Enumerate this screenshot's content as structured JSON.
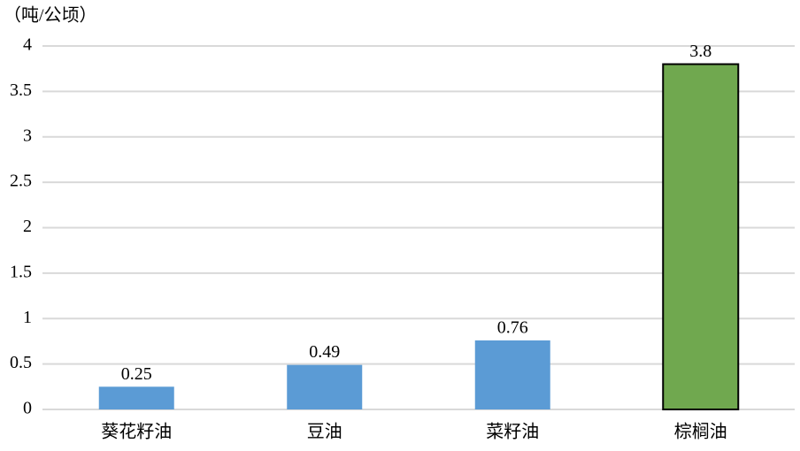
{
  "chart_data": {
    "type": "bar",
    "y_label": "（吨/公顷）",
    "categories": [
      "葵花籽油",
      "豆油",
      "菜籽油",
      "棕榈油"
    ],
    "values": [
      0.25,
      0.49,
      0.76,
      3.8
    ],
    "colors": [
      "#5b9bd5",
      "#5b9bd5",
      "#5b9bd5",
      "#70a84f"
    ],
    "edge_colors": [
      "none",
      "none",
      "none",
      "#000000"
    ],
    "ylim": [
      0,
      4
    ],
    "yticks": [
      0,
      0.5,
      1,
      1.5,
      2,
      2.5,
      3,
      3.5,
      4
    ],
    "grid": true
  }
}
